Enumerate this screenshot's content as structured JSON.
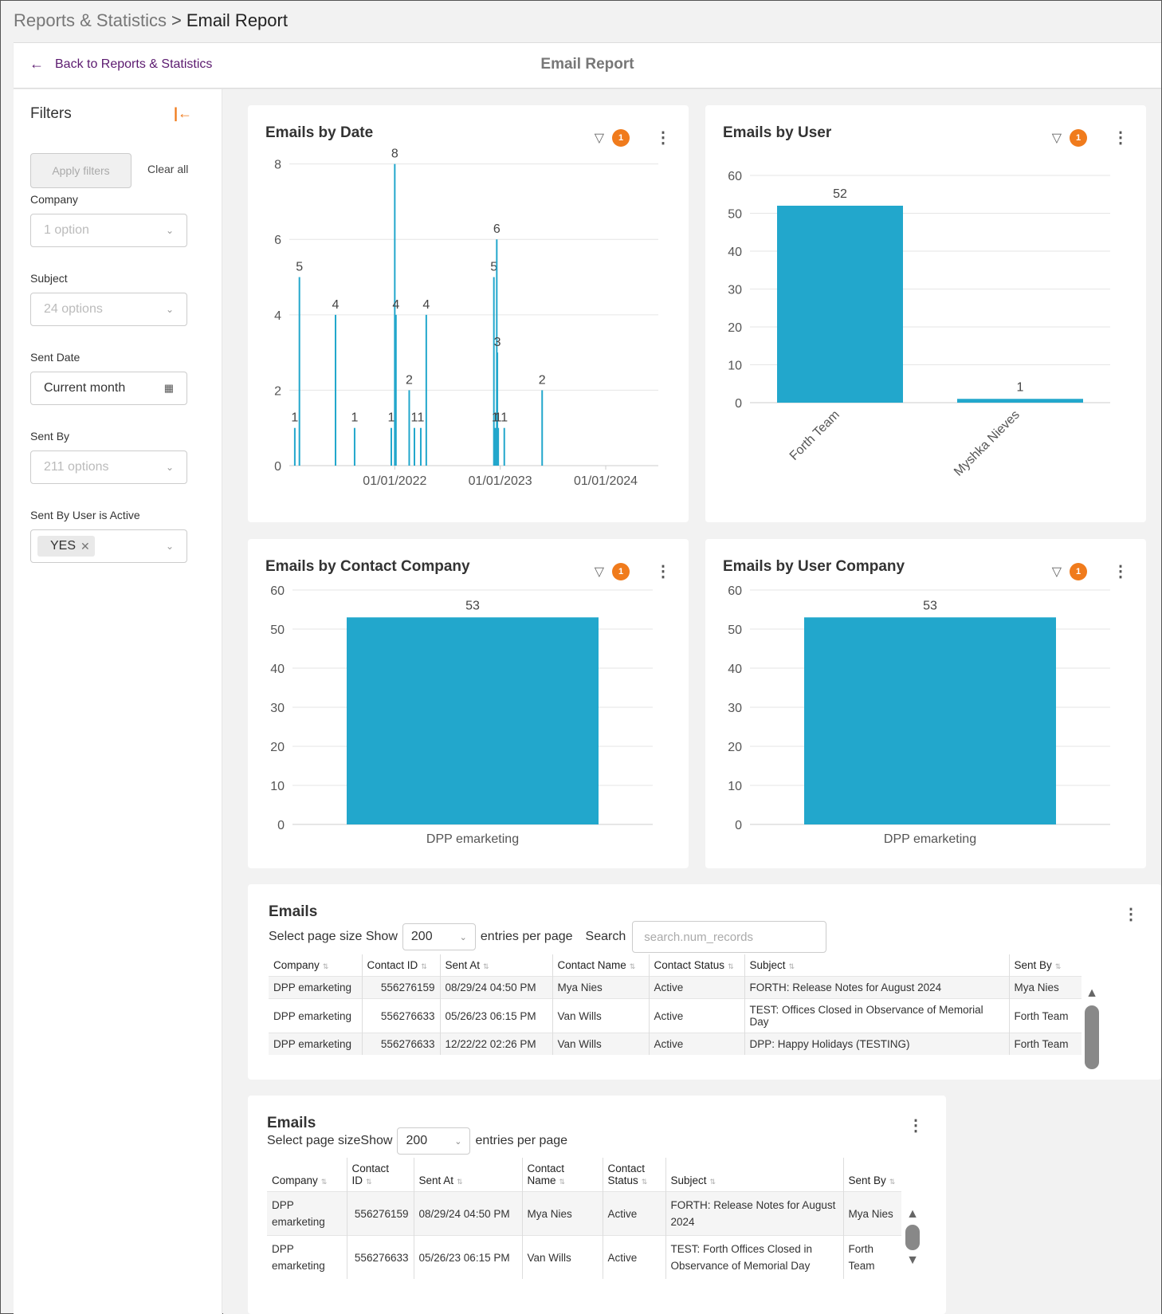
{
  "breadcrumb": {
    "parent": "Reports & Statistics",
    "separator": ">",
    "current": "Email Report"
  },
  "header": {
    "back_label": "Back to Reports & Statistics",
    "title": "Email Report"
  },
  "filters": {
    "title": "Filters",
    "apply_label": "Apply filters",
    "clear_label": "Clear all",
    "company": {
      "label": "Company",
      "value": "1 option"
    },
    "subject": {
      "label": "Subject",
      "value": "24 options"
    },
    "sent_date": {
      "label": "Sent Date",
      "value": "Current month"
    },
    "sent_by": {
      "label": "Sent By",
      "value": "211 options"
    },
    "sent_by_active": {
      "label": "Sent By User is Active",
      "chip": "YES"
    }
  },
  "badge_count": "1",
  "colors": {
    "bar": "#22a7cc",
    "accent": "#f07b1c",
    "link": "#5b1a6f"
  },
  "chart_data": [
    {
      "type": "bar",
      "title": "Emails by Date",
      "xlabel": "",
      "ylabel": "",
      "ylim": [
        0,
        8.5
      ],
      "yticks": [
        0,
        2,
        4,
        6,
        8
      ],
      "xticks": [
        "01/01/2022",
        "01/01/2023",
        "01/01/2024"
      ],
      "points": [
        {
          "x": "2021-01-20",
          "y": 1
        },
        {
          "x": "2021-02-05",
          "y": 5
        },
        {
          "x": "2021-06-10",
          "y": 4
        },
        {
          "x": "2021-08-15",
          "y": 1
        },
        {
          "x": "2021-12-20",
          "y": 1
        },
        {
          "x": "2022-01-01",
          "y": 8
        },
        {
          "x": "2022-01-05",
          "y": 4
        },
        {
          "x": "2022-02-20",
          "y": 2
        },
        {
          "x": "2022-03-10",
          "y": 1
        },
        {
          "x": "2022-04-01",
          "y": 1
        },
        {
          "x": "2022-04-20",
          "y": 4
        },
        {
          "x": "2022-12-10",
          "y": 5
        },
        {
          "x": "2022-12-15",
          "y": 1
        },
        {
          "x": "2022-12-20",
          "y": 6
        },
        {
          "x": "2022-12-22",
          "y": 3
        },
        {
          "x": "2022-12-25",
          "y": 1
        },
        {
          "x": "2023-01-15",
          "y": 1
        },
        {
          "x": "2023-05-26",
          "y": 2
        }
      ]
    },
    {
      "type": "bar",
      "title": "Emails by User",
      "categories": [
        "Forth Team",
        "Myshka Nieves"
      ],
      "values": [
        52,
        1
      ],
      "ylim": [
        0,
        60
      ],
      "yticks": [
        0,
        10,
        20,
        30,
        40,
        50,
        60
      ]
    },
    {
      "type": "bar",
      "title": "Emails by Contact Company",
      "categories": [
        "DPP emarketing"
      ],
      "values": [
        53
      ],
      "ylim": [
        0,
        60
      ],
      "yticks": [
        0,
        10,
        20,
        30,
        40,
        50,
        60
      ]
    },
    {
      "type": "bar",
      "title": "Emails by User Company",
      "categories": [
        "DPP emarketing"
      ],
      "values": [
        53
      ],
      "ylim": [
        0,
        60
      ],
      "yticks": [
        0,
        10,
        20,
        30,
        40,
        50,
        60
      ]
    }
  ],
  "emails_table": {
    "title": "Emails",
    "page_size_label": "Select page size",
    "show_label": "Show",
    "page_size": "200",
    "per_page_label": "entries per page",
    "search_label": "Search",
    "search_placeholder": "search.num_records",
    "columns": [
      "Company",
      "Contact ID",
      "Sent At",
      "Contact Name",
      "Contact Status",
      "Subject",
      "Sent By"
    ],
    "rows": [
      [
        "DPP emarketing",
        "556276159",
        "08/29/24 04:50 PM",
        "Mya Nies",
        "Active",
        "FORTH: Release Notes for August 2024",
        "Mya Nies"
      ],
      [
        "DPP emarketing",
        "556276633",
        "05/26/23 06:15 PM",
        "Van Wills",
        "Active",
        "TEST: Offices Closed in Observance of Memorial Day",
        "Forth Team"
      ],
      [
        "DPP emarketing",
        "556276633",
        "12/22/22 02:26 PM",
        "Van Wills",
        "Active",
        "DPP: Happy Holidays (TESTING)",
        "Forth Team"
      ]
    ]
  },
  "emails_table_2": {
    "title": "Emails",
    "page_size_label": "Select page size",
    "show_label": "Show",
    "page_size": "200",
    "per_page_label": "entries per page",
    "columns": [
      "Company",
      "Contact ID",
      "Sent At",
      "Contact Name",
      "Contact Status",
      "Subject",
      "Sent By"
    ],
    "rows": [
      [
        "DPP emarketing",
        "556276159",
        "08/29/24 04:50 PM",
        "Mya Nies",
        "Active",
        "FORTH: Release Notes for August 2024",
        "Mya Nies"
      ],
      [
        "DPP emarketing",
        "556276633",
        "05/26/23 06:15 PM",
        "Van Wills",
        "Active",
        "TEST: Forth Offices Closed in Observance of Memorial Day",
        "Forth Team"
      ]
    ]
  }
}
